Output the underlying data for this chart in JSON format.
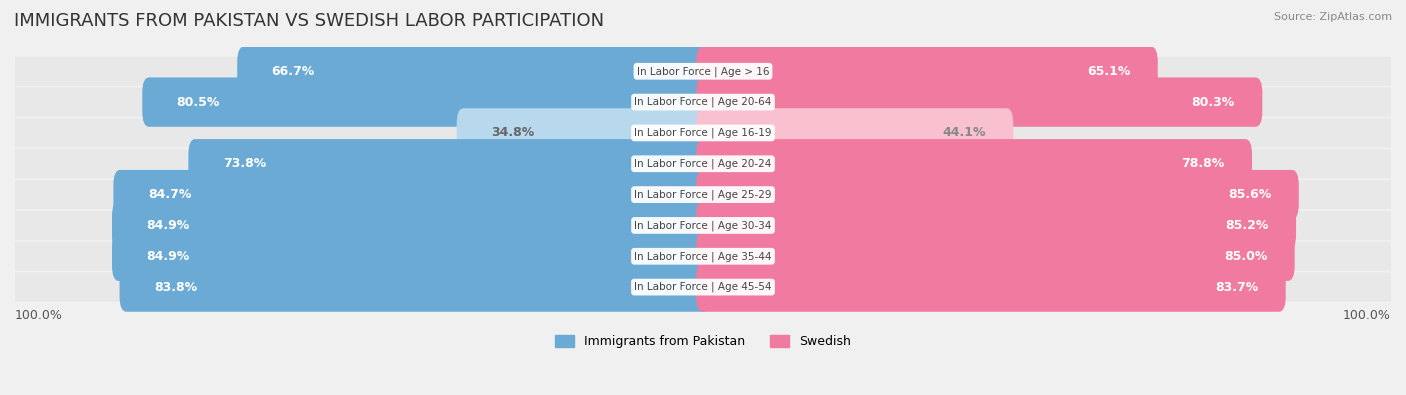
{
  "title": "IMMIGRANTS FROM PAKISTAN VS SWEDISH LABOR PARTICIPATION",
  "source": "Source: ZipAtlas.com",
  "categories": [
    "In Labor Force | Age > 16",
    "In Labor Force | Age 20-64",
    "In Labor Force | Age 16-19",
    "In Labor Force | Age 20-24",
    "In Labor Force | Age 25-29",
    "In Labor Force | Age 30-34",
    "In Labor Force | Age 35-44",
    "In Labor Force | Age 45-54"
  ],
  "pakistan_values": [
    66.7,
    80.5,
    34.8,
    73.8,
    84.7,
    84.9,
    84.9,
    83.8
  ],
  "swedish_values": [
    65.1,
    80.3,
    44.1,
    78.8,
    85.6,
    85.2,
    85.0,
    83.7
  ],
  "pakistan_color_strong": "#6aaad4",
  "pakistan_color_light": "#b8d8ed",
  "swedish_color_strong": "#f07aa0",
  "swedish_color_light": "#f9c0d0",
  "pakistan_label": "Immigrants from Pakistan",
  "swedish_label": "Swedish",
  "bg_color": "#f0f0f0",
  "bar_bg_color": "#ffffff",
  "row_bg_color": "#e8e8e8",
  "max_value": 100.0,
  "label_fontsize": 9,
  "title_fontsize": 13,
  "bar_height": 0.6,
  "x_left_label": "100.0%",
  "x_right_label": "100.0%"
}
